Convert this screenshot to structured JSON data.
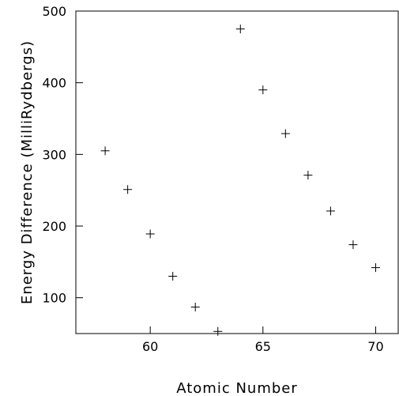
{
  "chart_data": {
    "type": "scatter",
    "title": "",
    "xlabel": "Atomic Number",
    "ylabel": "Energy Difference (MilliRydbergs)",
    "xlim": [
      56.7,
      71
    ],
    "ylim": [
      50,
      500
    ],
    "xticks": [
      60,
      65,
      70
    ],
    "yticks": [
      100,
      200,
      300,
      400,
      500
    ],
    "grid": false,
    "marker": "plus",
    "points": [
      {
        "x": 58,
        "y": 305
      },
      {
        "x": 59,
        "y": 251
      },
      {
        "x": 60,
        "y": 189
      },
      {
        "x": 61,
        "y": 130
      },
      {
        "x": 62,
        "y": 87
      },
      {
        "x": 63,
        "y": 53
      },
      {
        "x": 64,
        "y": 475
      },
      {
        "x": 65,
        "y": 390
      },
      {
        "x": 66,
        "y": 329
      },
      {
        "x": 67,
        "y": 271
      },
      {
        "x": 68,
        "y": 221
      },
      {
        "x": 69,
        "y": 174
      },
      {
        "x": 70,
        "y": 142
      }
    ]
  },
  "colors": {
    "axis": "#000000",
    "marker": "#000000",
    "background": "#ffffff"
  }
}
